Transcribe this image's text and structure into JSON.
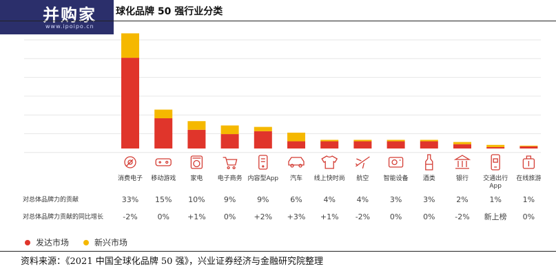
{
  "header": {
    "logo_text": "并购家",
    "logo_url": "www.ipoipo.cn",
    "title": "球化品牌 50 强行业分类"
  },
  "source": "资料来源：《2021 中国全球化品牌 50 强》，兴业证券经济与金融研究院整理",
  "colors": {
    "developed": "#e0352b",
    "emerging": "#f5b800",
    "grid": "#e6e6e6",
    "icon": "#d33b32"
  },
  "chart_data": {
    "type": "bar",
    "stacked": true,
    "categories": [
      "消费电子",
      "移动游戏",
      "家电",
      "电子商务",
      "内容型App",
      "汽车",
      "线上快时尚",
      "航空",
      "智能设备",
      "酒类",
      "银行",
      "交通出行App",
      "在线旅游"
    ],
    "icons": [
      "camera-icon",
      "gamepad-icon",
      "washer-icon",
      "cart-icon",
      "phone-app-icon",
      "car-icon",
      "shirt-icon",
      "plane-icon",
      "device-icon",
      "bottle-icon",
      "bank-icon",
      "mobile-icon",
      "luggage-icon"
    ],
    "series": [
      {
        "name": "发达市场",
        "values": [
          63,
          21,
          13,
          10,
          12,
          5,
          5,
          5,
          5,
          5,
          3,
          1,
          1.5
        ]
      },
      {
        "name": "新兴市场",
        "values": [
          17,
          6,
          6,
          6,
          3,
          6,
          1,
          1,
          1,
          1,
          1.5,
          1.5,
          0.5
        ]
      }
    ],
    "ylim": [
      0,
      85
    ],
    "grid": true,
    "legend_position": "bottom-left",
    "rows": [
      {
        "label": "对总体品牌力的贡献",
        "values": [
          "33%",
          "15%",
          "10%",
          "9%",
          "9%",
          "6%",
          "4%",
          "4%",
          "3%",
          "3%",
          "2%",
          "1%",
          "1%"
        ]
      },
      {
        "label": "对总体品牌力贡献的同比增长",
        "values": [
          "-2%",
          "0%",
          "+1%",
          "0%",
          "+2%",
          "+3%",
          "+1%",
          "-2%",
          "0%",
          "0%",
          "-2%",
          "新上榜",
          "0%"
        ]
      }
    ]
  }
}
